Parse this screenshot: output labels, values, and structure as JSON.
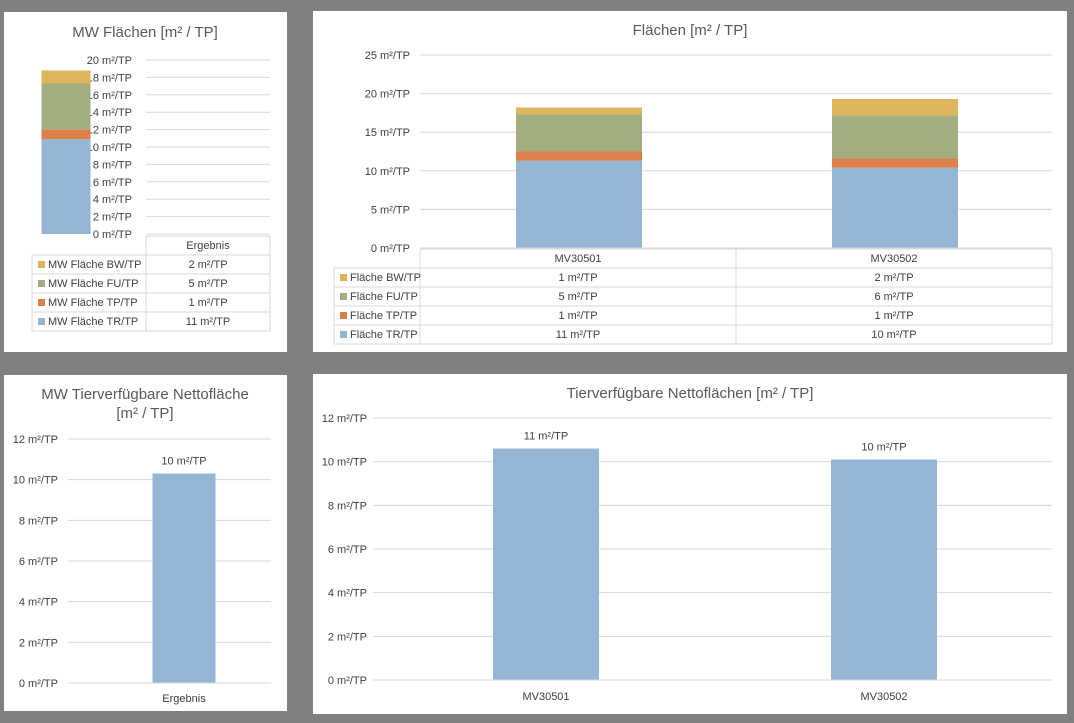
{
  "unit_suffix": " m²/TP",
  "colors": {
    "BW": "#DDB55B",
    "FU": "#A3AE80",
    "TP": "#DD7F48",
    "TR": "#94B6D4",
    "grid": "#D9D9D9",
    "panel": "#FFFFFF",
    "background": "#808080"
  },
  "chart_data": [
    {
      "id": "mw_flaechen",
      "type": "bar",
      "stacked": true,
      "title": "MW Flächen [m² / TP]",
      "categories": [
        "Ergebnis"
      ],
      "series": [
        {
          "name": "MW Fläche TR/TP",
          "key": "TR",
          "values": [
            10.9
          ],
          "table": [
            "11 m²/TP"
          ]
        },
        {
          "name": "MW Fläche TP/TP",
          "key": "TP",
          "values": [
            1.1
          ],
          "table": [
            "1 m²/TP"
          ]
        },
        {
          "name": "MW Fläche FU/TP",
          "key": "FU",
          "values": [
            5.3
          ],
          "table": [
            "5 m²/TP"
          ]
        },
        {
          "name": "MW Fläche BW/TP",
          "key": "BW",
          "values": [
            1.5
          ],
          "table": [
            "2 m²/TP"
          ]
        }
      ],
      "yticks": [
        "0 m²/TP",
        "2 m²/TP",
        "4 m²/TP",
        "6 m²/TP",
        "8 m²/TP",
        "10 m²/TP",
        "12 m²/TP",
        "14 m²/TP",
        "16 m²/TP",
        "18 m²/TP",
        "20 m²/TP"
      ],
      "ylim": [
        0,
        20
      ],
      "grid": true,
      "data_table": true
    },
    {
      "id": "flaechen",
      "type": "bar",
      "stacked": true,
      "title": "Flächen [m² / TP]",
      "categories": [
        "MV30501",
        "MV30502"
      ],
      "series": [
        {
          "name": "Fläche TR/TP",
          "key": "TR",
          "values": [
            11.3,
            10.4
          ],
          "table": [
            "11 m²/TP",
            "10 m²/TP"
          ]
        },
        {
          "name": "Fläche TP/TP",
          "key": "TP",
          "values": [
            1.2,
            1.2
          ],
          "table": [
            "1 m²/TP",
            "1 m²/TP"
          ]
        },
        {
          "name": "Fläche FU/TP",
          "key": "FU",
          "values": [
            4.8,
            5.6
          ],
          "table": [
            "5 m²/TP",
            "6 m²/TP"
          ]
        },
        {
          "name": "Fläche BW/TP",
          "key": "BW",
          "values": [
            0.9,
            2.1
          ],
          "table": [
            "1 m²/TP",
            "2 m²/TP"
          ]
        }
      ],
      "yticks": [
        "0 m²/TP",
        "5 m²/TP",
        "10 m²/TP",
        "15 m²/TP",
        "20 m²/TP",
        "25 m²/TP"
      ],
      "ylim": [
        0,
        25
      ],
      "grid": true,
      "data_table": true
    },
    {
      "id": "mw_netto",
      "type": "bar",
      "title": "MW Tierverfügbare Nettofläche [m² / TP]",
      "title_lines": [
        "MW Tierverfügbare Nettofläche",
        "[m² / TP]"
      ],
      "categories": [
        "Ergebnis"
      ],
      "series": [
        {
          "key": "TR",
          "values": [
            10.3
          ],
          "labels": [
            "10 m²/TP"
          ]
        }
      ],
      "yticks": [
        "0 m²/TP",
        "2 m²/TP",
        "4 m²/TP",
        "6 m²/TP",
        "8 m²/TP",
        "10 m²/TP",
        "12 m²/TP"
      ],
      "ylim": [
        0,
        12
      ],
      "grid": true
    },
    {
      "id": "netto",
      "type": "bar",
      "title": "Tierverfügbare Nettoflächen [m² / TP]",
      "categories": [
        "MV30501",
        "MV30502"
      ],
      "series": [
        {
          "key": "TR",
          "values": [
            10.6,
            10.1
          ],
          "labels": [
            "11 m²/TP",
            "10 m²/TP"
          ]
        }
      ],
      "yticks": [
        "0 m²/TP",
        "2 m²/TP",
        "4 m²/TP",
        "6 m²/TP",
        "8 m²/TP",
        "10 m²/TP",
        "12 m²/TP"
      ],
      "ylim": [
        0,
        12
      ],
      "grid": true
    }
  ]
}
